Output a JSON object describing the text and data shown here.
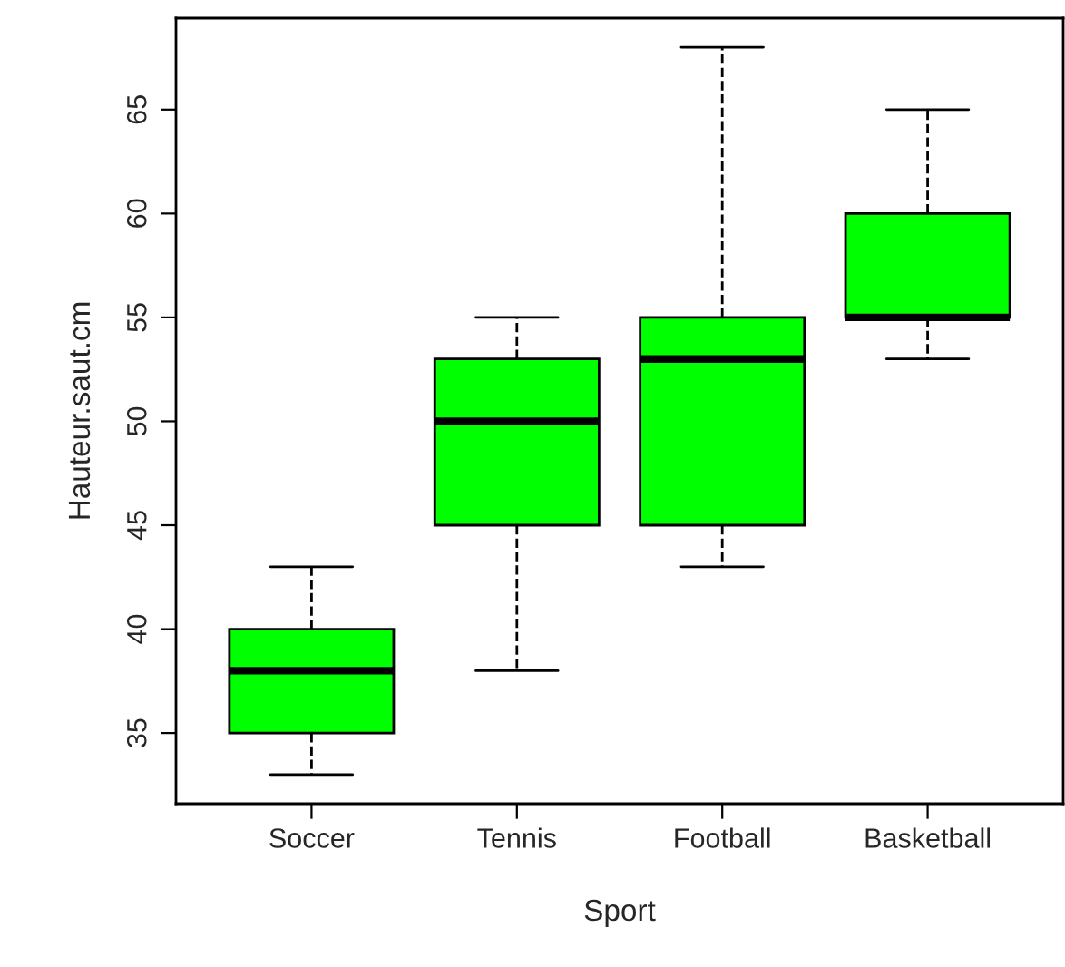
{
  "chart_data": {
    "type": "box",
    "xlabel": "Sport",
    "ylabel": "Hauteur.saut.cm",
    "categories": [
      "Soccer",
      "Tennis",
      "Football",
      "Basketball"
    ],
    "boxes": [
      {
        "low": 33,
        "q1": 35,
        "median": 38,
        "q3": 40,
        "high": 43
      },
      {
        "low": 38,
        "q1": 45,
        "median": 50,
        "q3": 53,
        "high": 55
      },
      {
        "low": 43,
        "q1": 45,
        "median": 53,
        "q3": 55,
        "high": 68
      },
      {
        "low": 53,
        "q1": 55,
        "median": 55,
        "q3": 60,
        "high": 65
      }
    ],
    "color": "#00ff00",
    "ylim": [
      31.6,
      69.4
    ],
    "yticks": [
      35,
      40,
      45,
      50,
      55,
      60,
      65
    ],
    "grid": false
  }
}
